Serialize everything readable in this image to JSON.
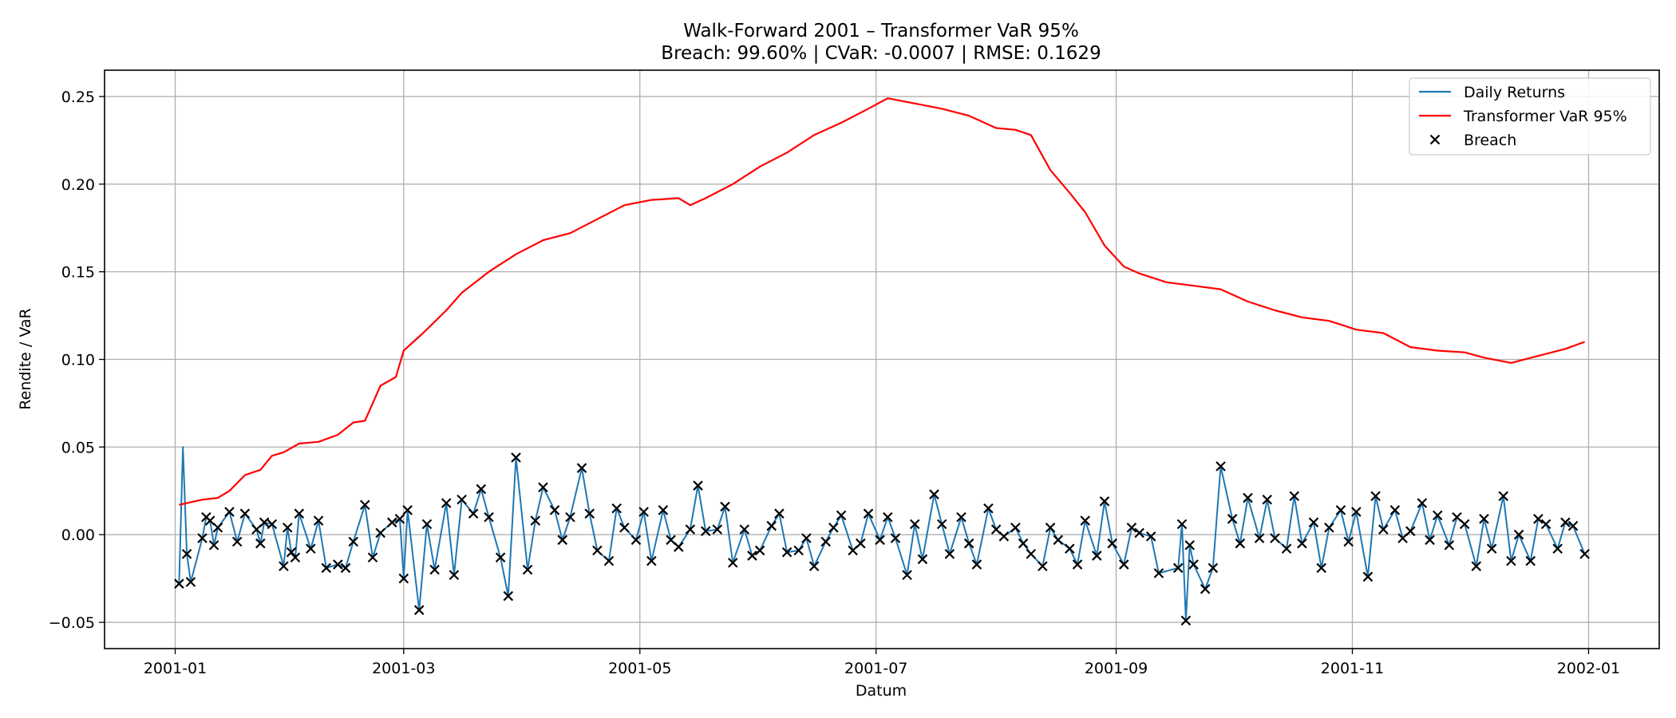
{
  "chart_data": {
    "type": "line",
    "title": "Walk-Forward 2001 – Transformer VaR 95%",
    "subtitle": "Breach: 99.60% | CVaR: -0.0007 | RMSE: 0.1629",
    "xlabel": "Datum",
    "ylabel": "Rendite / VaR",
    "xlim": [
      "2001-01-01",
      "2002-01-01"
    ],
    "ylim": [
      -0.065,
      0.265
    ],
    "x_ticks": [
      "2001-01",
      "2001-03",
      "2001-05",
      "2001-07",
      "2001-09",
      "2001-11",
      "2002-01"
    ],
    "y_ticks": [
      "-0.05",
      "0.00",
      "0.05",
      "0.10",
      "0.15",
      "0.20",
      "0.25"
    ],
    "grid": true,
    "legend_position": "top-right",
    "colors": {
      "returns": "#1f77b4",
      "var": "#ff0000",
      "breach": "#000000"
    },
    "series": [
      {
        "name": "Daily Returns",
        "kind": "line",
        "x": [
          "2001-01-02",
          "2001-01-03",
          "2001-01-04",
          "2001-01-05",
          "2001-01-08",
          "2001-01-09",
          "2001-01-10",
          "2001-01-11",
          "2001-01-12",
          "2001-01-15",
          "2001-01-17",
          "2001-01-19",
          "2001-01-22",
          "2001-01-23",
          "2001-01-24",
          "2001-01-26",
          "2001-01-29",
          "2001-01-30",
          "2001-01-31",
          "2001-02-01",
          "2001-02-02",
          "2001-02-05",
          "2001-02-07",
          "2001-02-09",
          "2001-02-12",
          "2001-02-14",
          "2001-02-16",
          "2001-02-19",
          "2001-02-21",
          "2001-02-23",
          "2001-02-26",
          "2001-02-28",
          "2001-03-01",
          "2001-03-02",
          "2001-03-05",
          "2001-03-07",
          "2001-03-09",
          "2001-03-12",
          "2001-03-14",
          "2001-03-16",
          "2001-03-19",
          "2001-03-21",
          "2001-03-23",
          "2001-03-26",
          "2001-03-28",
          "2001-03-30",
          "2001-04-02",
          "2001-04-04",
          "2001-04-06",
          "2001-04-09",
          "2001-04-11",
          "2001-04-13",
          "2001-04-16",
          "2001-04-18",
          "2001-04-20",
          "2001-04-23",
          "2001-04-25",
          "2001-04-27",
          "2001-04-30",
          "2001-05-02",
          "2001-05-04",
          "2001-05-07",
          "2001-05-09",
          "2001-05-11",
          "2001-05-14",
          "2001-05-16",
          "2001-05-18",
          "2001-05-21",
          "2001-05-23",
          "2001-05-25",
          "2001-05-28",
          "2001-05-30",
          "2001-06-01",
          "2001-06-04",
          "2001-06-06",
          "2001-06-08",
          "2001-06-11",
          "2001-06-13",
          "2001-06-15",
          "2001-06-18",
          "2001-06-20",
          "2001-06-22",
          "2001-06-25",
          "2001-06-27",
          "2001-06-29",
          "2001-07-02",
          "2001-07-04",
          "2001-07-06",
          "2001-07-09",
          "2001-07-11",
          "2001-07-13",
          "2001-07-16",
          "2001-07-18",
          "2001-07-20",
          "2001-07-23",
          "2001-07-25",
          "2001-07-27",
          "2001-07-30",
          "2001-08-01",
          "2001-08-03",
          "2001-08-06",
          "2001-08-08",
          "2001-08-10",
          "2001-08-13",
          "2001-08-15",
          "2001-08-17",
          "2001-08-20",
          "2001-08-22",
          "2001-08-24",
          "2001-08-27",
          "2001-08-29",
          "2001-08-31",
          "2001-09-03",
          "2001-09-05",
          "2001-09-07",
          "2001-09-10",
          "2001-09-12",
          "2001-09-17",
          "2001-09-18",
          "2001-09-19",
          "2001-09-20",
          "2001-09-21",
          "2001-09-24",
          "2001-09-26",
          "2001-09-28",
          "2001-10-01",
          "2001-10-03",
          "2001-10-05",
          "2001-10-08",
          "2001-10-10",
          "2001-10-12",
          "2001-10-15",
          "2001-10-17",
          "2001-10-19",
          "2001-10-22",
          "2001-10-24",
          "2001-10-26",
          "2001-10-29",
          "2001-10-31",
          "2001-11-02",
          "2001-11-05",
          "2001-11-07",
          "2001-11-09",
          "2001-11-12",
          "2001-11-14",
          "2001-11-16",
          "2001-11-19",
          "2001-11-21",
          "2001-11-23",
          "2001-11-26",
          "2001-11-28",
          "2001-11-30",
          "2001-12-03",
          "2001-12-05",
          "2001-12-07",
          "2001-12-10",
          "2001-12-12",
          "2001-12-14",
          "2001-12-17",
          "2001-12-19",
          "2001-12-21",
          "2001-12-24",
          "2001-12-26",
          "2001-12-28",
          "2001-12-31"
        ],
        "y": [
          -0.028,
          0.05,
          -0.011,
          -0.027,
          -0.002,
          0.01,
          0.008,
          -0.006,
          0.004,
          0.013,
          -0.004,
          0.012,
          0.003,
          -0.005,
          0.007,
          0.006,
          -0.018,
          0.004,
          -0.01,
          -0.013,
          0.012,
          -0.008,
          0.008,
          -0.019,
          -0.017,
          -0.019,
          -0.004,
          0.017,
          -0.013,
          0.001,
          0.007,
          0.009,
          -0.025,
          0.014,
          -0.043,
          0.006,
          -0.02,
          0.018,
          -0.023,
          0.02,
          0.012,
          0.026,
          0.01,
          -0.013,
          -0.035,
          0.044,
          -0.02,
          0.008,
          0.027,
          0.014,
          -0.003,
          0.01,
          0.038,
          0.012,
          -0.009,
          -0.015,
          0.015,
          0.004,
          -0.003,
          0.013,
          -0.015,
          0.014,
          -0.003,
          -0.007,
          0.003,
          0.028,
          0.002,
          0.003,
          0.016,
          -0.016,
          0.003,
          -0.012,
          -0.009,
          0.005,
          0.012,
          -0.01,
          -0.009,
          -0.002,
          -0.018,
          -0.004,
          0.004,
          0.011,
          -0.009,
          -0.005,
          0.012,
          -0.003,
          0.01,
          -0.002,
          -0.023,
          0.006,
          -0.014,
          0.023,
          0.006,
          -0.011,
          0.01,
          -0.005,
          -0.017,
          0.015,
          0.003,
          -0.001,
          0.004,
          -0.005,
          -0.011,
          -0.018,
          0.004,
          -0.003,
          -0.008,
          -0.017,
          0.008,
          -0.012,
          0.019,
          -0.005,
          -0.017,
          0.004,
          0.001,
          -0.001,
          -0.022,
          -0.019,
          0.006,
          -0.049,
          -0.006,
          -0.017,
          -0.031,
          -0.019,
          0.039,
          0.009,
          -0.005,
          0.021,
          -0.002,
          0.02,
          -0.002,
          -0.008,
          0.022,
          -0.005,
          0.007,
          -0.019,
          0.004,
          0.014,
          -0.004,
          0.013,
          -0.024,
          0.022,
          0.003,
          0.014,
          -0.002,
          0.002,
          0.018,
          -0.003,
          0.011,
          -0.006,
          0.01,
          0.006,
          -0.018,
          0.009,
          -0.008,
          0.022,
          -0.015,
          0.0,
          -0.015,
          0.009,
          0.006,
          -0.008,
          0.007,
          0.005,
          -0.011
        ]
      },
      {
        "name": "Transformer VaR 95%",
        "kind": "line",
        "x": [
          "2001-01-02",
          "2001-01-08",
          "2001-01-12",
          "2001-01-15",
          "2001-01-19",
          "2001-01-23",
          "2001-01-26",
          "2001-01-29",
          "2001-02-02",
          "2001-02-07",
          "2001-02-12",
          "2001-02-16",
          "2001-02-19",
          "2001-02-23",
          "2001-02-27",
          "2001-03-01",
          "2001-03-06",
          "2001-03-12",
          "2001-03-16",
          "2001-03-23",
          "2001-03-30",
          "2001-04-06",
          "2001-04-13",
          "2001-04-20",
          "2001-04-27",
          "2001-05-04",
          "2001-05-11",
          "2001-05-14",
          "2001-05-18",
          "2001-05-25",
          "2001-06-01",
          "2001-06-08",
          "2001-06-15",
          "2001-06-22",
          "2001-06-29",
          "2001-07-04",
          "2001-07-11",
          "2001-07-18",
          "2001-07-25",
          "2001-08-01",
          "2001-08-06",
          "2001-08-10",
          "2001-08-15",
          "2001-08-20",
          "2001-08-24",
          "2001-08-29",
          "2001-09-03",
          "2001-09-07",
          "2001-09-14",
          "2001-09-21",
          "2001-09-28",
          "2001-10-05",
          "2001-10-12",
          "2001-10-19",
          "2001-10-26",
          "2001-11-02",
          "2001-11-09",
          "2001-11-16",
          "2001-11-23",
          "2001-11-30",
          "2001-12-05",
          "2001-12-12",
          "2001-12-19",
          "2001-12-26",
          "2001-12-31"
        ],
        "y": [
          0.017,
          0.02,
          0.021,
          0.025,
          0.034,
          0.037,
          0.045,
          0.047,
          0.052,
          0.053,
          0.057,
          0.064,
          0.065,
          0.085,
          0.09,
          0.105,
          0.115,
          0.128,
          0.138,
          0.15,
          0.16,
          0.168,
          0.172,
          0.18,
          0.188,
          0.191,
          0.192,
          0.188,
          0.192,
          0.2,
          0.21,
          0.218,
          0.228,
          0.235,
          0.243,
          0.249,
          0.246,
          0.243,
          0.239,
          0.232,
          0.231,
          0.228,
          0.208,
          0.195,
          0.184,
          0.165,
          0.153,
          0.149,
          0.144,
          0.142,
          0.14,
          0.133,
          0.128,
          0.124,
          0.122,
          0.117,
          0.115,
          0.107,
          0.105,
          0.104,
          0.101,
          0.098,
          0.102,
          0.106,
          0.11
        ]
      },
      {
        "name": "Breach",
        "kind": "scatter",
        "marker": "x"
      }
    ]
  }
}
